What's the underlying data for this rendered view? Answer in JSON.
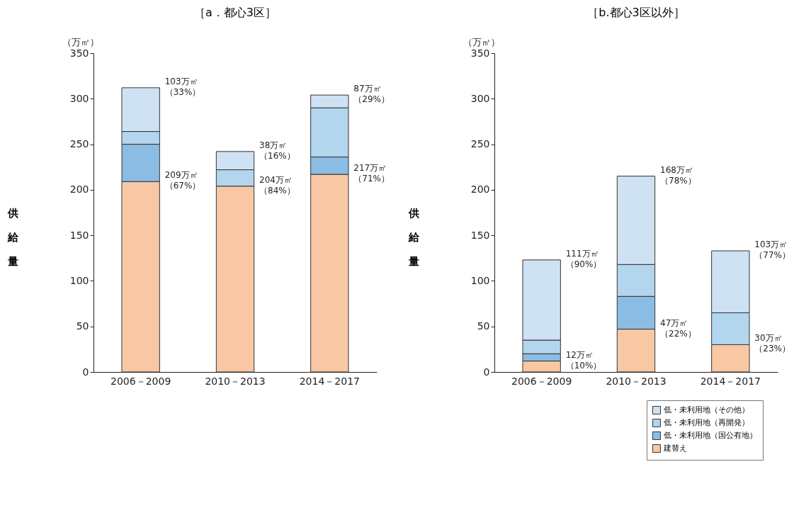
{
  "chart_data": [
    {
      "type": "bar",
      "title": "［a．都心3区］",
      "ylabel": "供給量",
      "stacked": true,
      "categories": [
        "2006－2009",
        "2010－2013",
        "2014－2017"
      ],
      "series": [
        {
          "color": "#f8c8a5",
          "values": [
            209,
            204,
            217
          ]
        },
        {
          "color": "#8bbce4",
          "values": [
            41,
            null,
            19
          ]
        },
        {
          "color": "#b3d5ee",
          "values": [
            14,
            18,
            54
          ]
        },
        {
          "color": "#cfe2f3",
          "values": [
            48,
            20,
            14
          ]
        }
      ],
      "ylim": [
        0,
        350
      ],
      "yticks": [
        0,
        50,
        100,
        150,
        200,
        250,
        300,
        350
      ],
      "grid": false,
      "annotations": [
        "（万㎡）",
        {
          "text": "103万㎡（33%）",
          "x": "2006－2009",
          "y": 312
        },
        {
          "text": "209万㎡（67%）",
          "x": "2006－2009",
          "y": 209
        },
        {
          "text": "38万㎡（16%）",
          "x": "2010－2013",
          "y": 242
        },
        {
          "text": "204万㎡（84%）",
          "x": "2010－2013",
          "y": 204
        },
        {
          "text": "87万㎡（29%）",
          "x": "2014－2017",
          "y": 304
        },
        {
          "text": "217万㎡（71%）",
          "x": "2014－2017",
          "y": 217
        }
      ]
    },
    {
      "type": "bar",
      "title": "［b.都心3区以外］",
      "ylabel": "供給量",
      "stacked": true,
      "categories": [
        "2006－2009",
        "2010－2013",
        "2014－2017"
      ],
      "series": [
        {
          "name": "建替え",
          "color": "#f8c8a5",
          "values": [
            12,
            47,
            30
          ]
        },
        {
          "name": "低・未利用地（国公有地）",
          "color": "#8bbce4",
          "values": [
            8,
            36,
            null
          ]
        },
        {
          "name": "低・未利用地（再開発）",
          "color": "#b3d5ee",
          "values": [
            15,
            35,
            35
          ]
        },
        {
          "name": "低・未利用地（その他）",
          "color": "#cfe2f3",
          "values": [
            88,
            97,
            68
          ]
        }
      ],
      "ylim": [
        0,
        350
      ],
      "yticks": [
        0,
        50,
        100,
        150,
        200,
        250,
        300,
        350
      ],
      "grid": false,
      "legend": "bottom right",
      "annotations": [
        "（万㎡）",
        {
          "text": "111万㎡（90%）",
          "x": "2006－2009",
          "y": 123
        },
        {
          "text": "12万㎡（10%）",
          "x": "2006－2009",
          "y": 12
        },
        {
          "text": "168万㎡（78%）",
          "x": "2010－2013",
          "y": 215
        },
        {
          "text": "47万㎡（22%）",
          "x": "2010－2013",
          "y": 47
        },
        {
          "text": "103万㎡（77%）",
          "x": "2014－2017",
          "y": 133
        },
        {
          "text": "30万㎡（23%）",
          "x": "2014－2017",
          "y": 30
        }
      ]
    }
  ]
}
